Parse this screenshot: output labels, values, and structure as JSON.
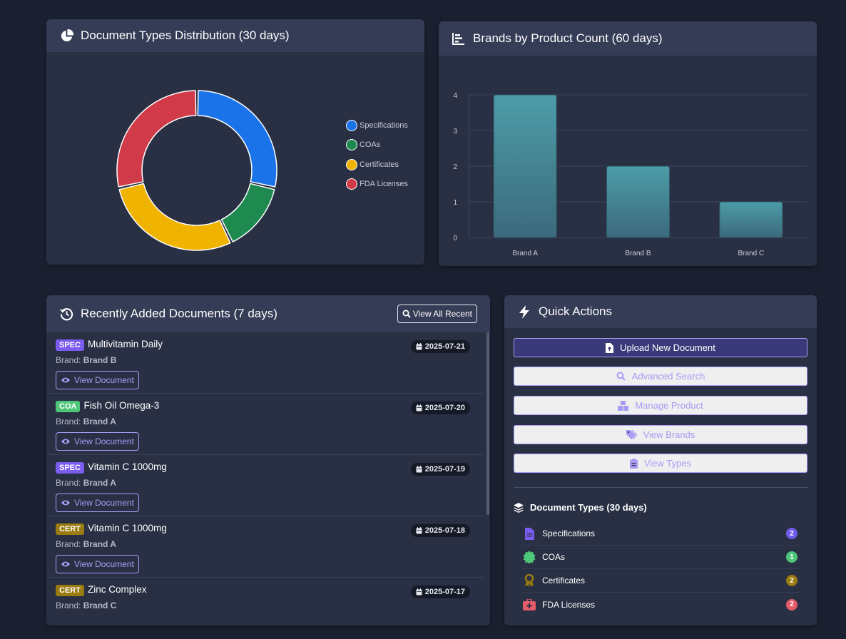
{
  "donut_card": {
    "title": "Document Types Distribution (30 days)",
    "legend": [
      {
        "label": "Specifications",
        "color": "#1a73e8"
      },
      {
        "label": "COAs",
        "color": "#1e8a50"
      },
      {
        "label": "Certificates",
        "color": "#f0b400"
      },
      {
        "label": "FDA Licenses",
        "color": "#d13a48"
      }
    ]
  },
  "bars_card": {
    "title": "Brands by Product Count (60 days)"
  },
  "chart_data": [
    {
      "type": "pie",
      "categories": [
        "Specifications",
        "COAs",
        "Certificates",
        "FDA Licenses"
      ],
      "values": [
        2,
        1,
        2,
        2
      ],
      "colors": [
        "#1a73e8",
        "#1e8a50",
        "#f0b400",
        "#d13a48"
      ],
      "donut": true
    },
    {
      "type": "bar",
      "categories": [
        "Brand A",
        "Brand B",
        "Brand C"
      ],
      "values": [
        4,
        2,
        1
      ],
      "ylim": [
        0,
        4
      ],
      "yticks": [
        "0",
        "1",
        "2",
        "3",
        "4"
      ],
      "grid": true,
      "color": "#4a96a3"
    }
  ],
  "recent": {
    "title": "Recently Added Documents (7 days)",
    "view_all_label": "View All Recent",
    "brand_prefix": "Brand:",
    "view_doc_label": "View Document",
    "items": [
      {
        "badge": "SPEC",
        "title": "Multivitamin Daily",
        "brand": "Brand B",
        "date": "2025-07-21"
      },
      {
        "badge": "COA",
        "title": "Fish Oil Omega-3",
        "brand": "Brand A",
        "date": "2025-07-20"
      },
      {
        "badge": "SPEC",
        "title": "Vitamin C 1000mg",
        "brand": "Brand A",
        "date": "2025-07-19"
      },
      {
        "badge": "CERT",
        "title": "Vitamin C 1000mg",
        "brand": "Brand A",
        "date": "2025-07-18"
      },
      {
        "badge": "CERT",
        "title": "Zinc Complex",
        "brand": "Brand C",
        "date": "2025-07-17"
      }
    ]
  },
  "quick": {
    "title": "Quick Actions",
    "buttons": [
      {
        "label": "Upload New Document",
        "icon": "file-upload-icon"
      },
      {
        "label": "Advanced Search",
        "icon": "search-icon"
      },
      {
        "label": "Manage Product",
        "icon": "boxes-icon"
      },
      {
        "label": "View Brands",
        "icon": "tags-icon"
      },
      {
        "label": "View Types",
        "icon": "clipboard-icon"
      }
    ],
    "doc_types_heading": "Document Types (30 days)",
    "doc_types": [
      {
        "label": "Specifications",
        "count": "2",
        "icon": "document-icon",
        "badge_color": "#6f5ce8"
      },
      {
        "label": "COAs",
        "count": "1",
        "icon": "certificate-seal-icon",
        "badge_color": "#4fc77a"
      },
      {
        "label": "Certificates",
        "count": "2",
        "icon": "award-icon",
        "badge_color": "#9a7b10"
      },
      {
        "label": "FDA Licenses",
        "count": "2",
        "icon": "medkit-icon",
        "badge_color": "#e45c6a"
      }
    ]
  }
}
